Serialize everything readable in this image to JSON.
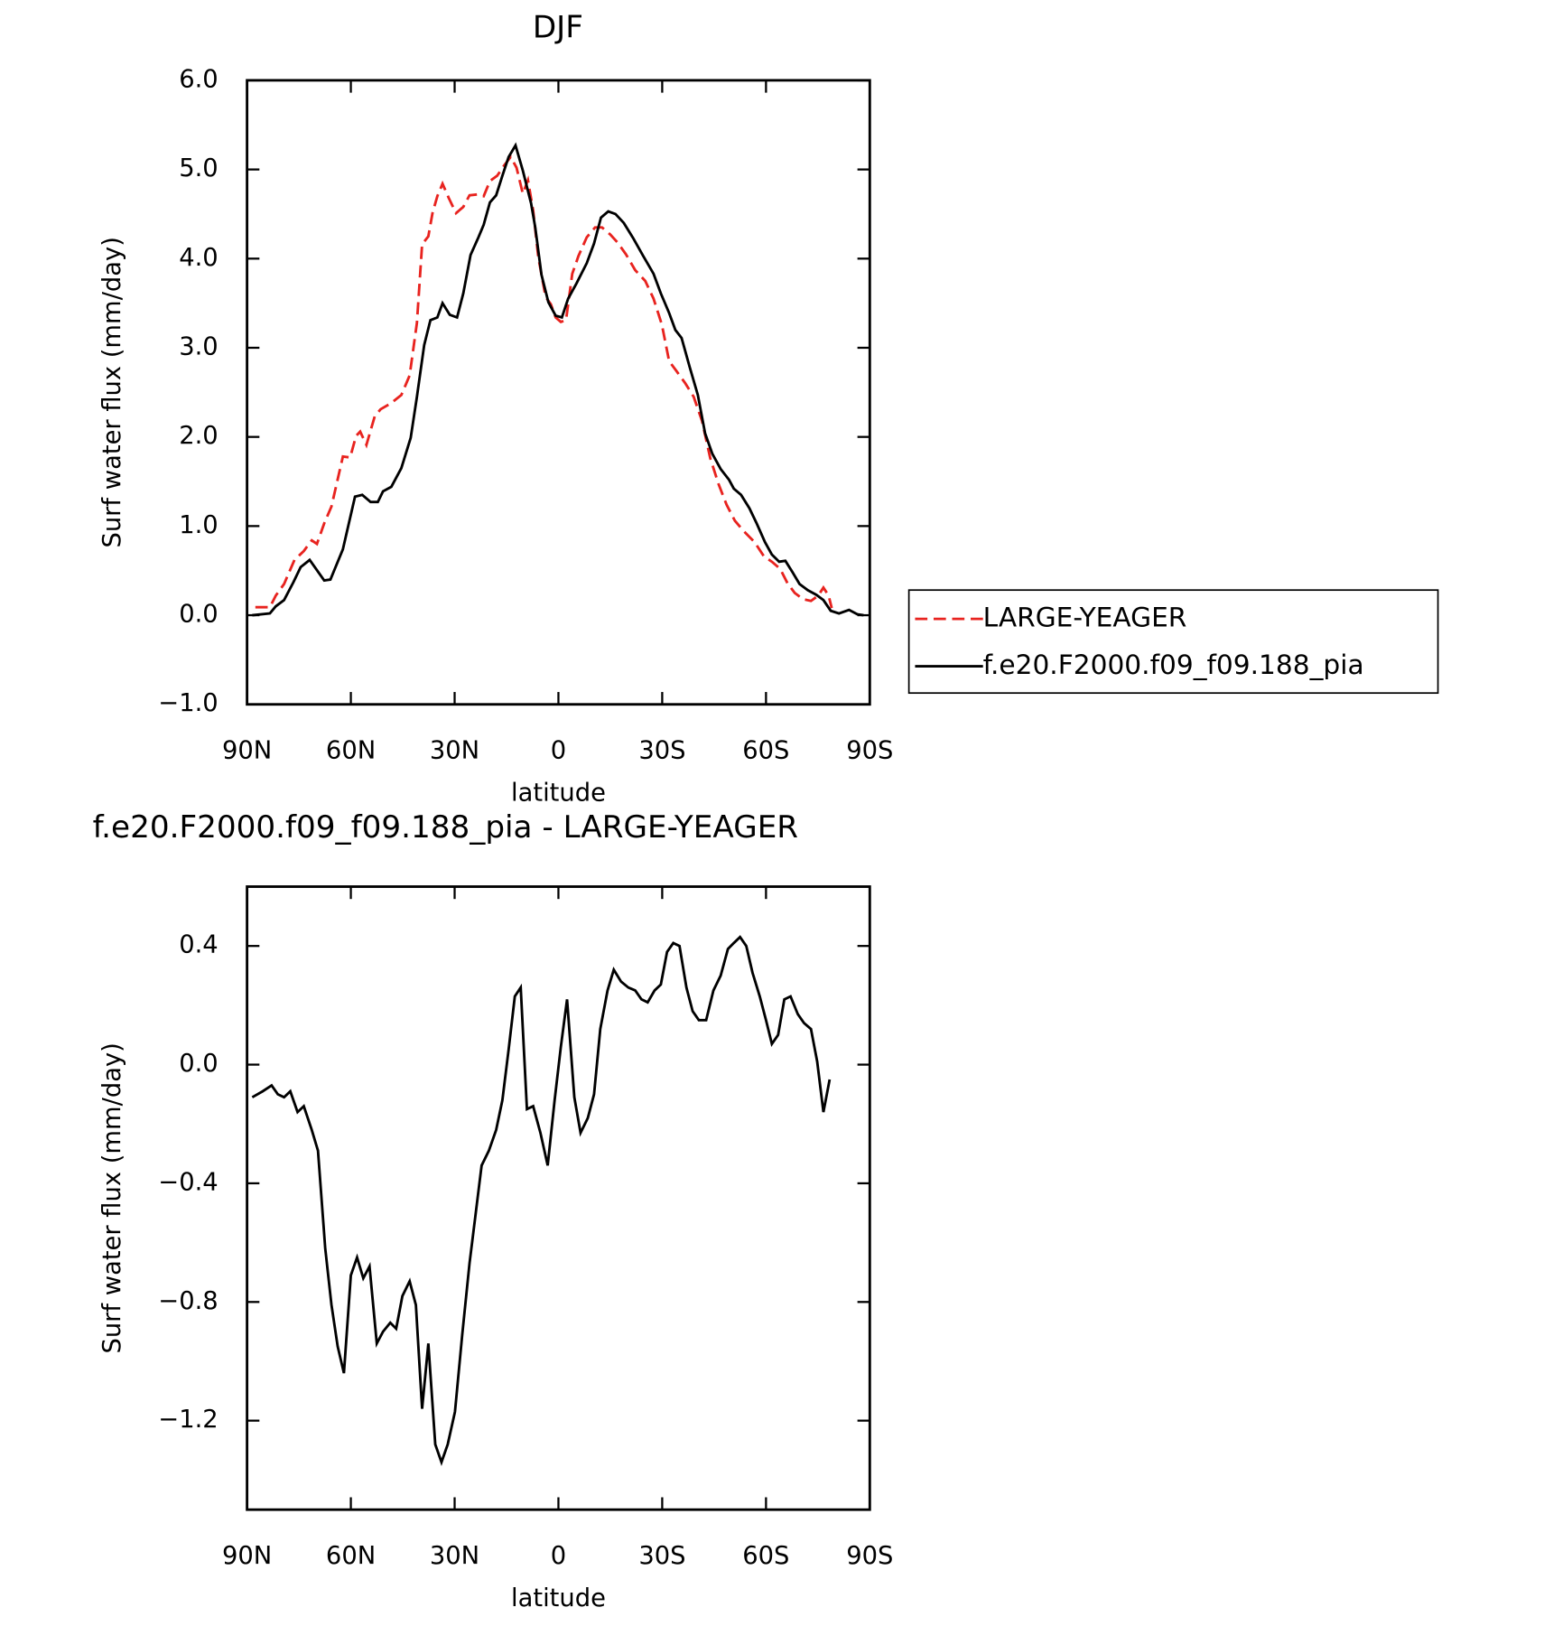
{
  "chart_data": [
    {
      "type": "line",
      "title": "DJF",
      "xlabel": "latitude",
      "ylabel": "Surf water flux (mm/day)",
      "xlim": [
        90,
        -90
      ],
      "xticks": [
        {
          "value": 90,
          "label": "90N"
        },
        {
          "value": 60,
          "label": "60N"
        },
        {
          "value": 30,
          "label": "30N"
        },
        0,
        {
          "value": -30,
          "label": "30S"
        },
        {
          "value": -60,
          "label": "60S"
        },
        {
          "value": -90,
          "label": "90S"
        }
      ],
      "ylim": [
        -1,
        6
      ],
      "yticks": [
        {
          "value": -1,
          "label": "−1.0"
        },
        {
          "value": 0,
          "label": "0.0"
        },
        {
          "value": 1,
          "label": "1.0"
        },
        {
          "value": 2,
          "label": "2.0"
        },
        {
          "value": 3,
          "label": "3.0"
        },
        {
          "value": 4,
          "label": "4.0"
        },
        {
          "value": 5,
          "label": "5.0"
        },
        {
          "value": 6,
          "label": "6.0"
        }
      ],
      "legend": "right",
      "series": [
        {
          "name": "LARGE-YEAGER",
          "color": "#e8231f",
          "dashed": true,
          "x": [
            87.6,
            83.4,
            81.7,
            79.3,
            76.3,
            73.6,
            71.3,
            69.8,
            67.7,
            65.6,
            62.3,
            60.2,
            58.5,
            57.3,
            55.5,
            53.1,
            51.4,
            48.3,
            45.4,
            43.0,
            40.9,
            39.4,
            37.6,
            36.4,
            35.0,
            33.5,
            31.7,
            29.6,
            27.5,
            25.7,
            23.4,
            21.6,
            19.8,
            17.7,
            15.6,
            13.8,
            12.1,
            10.3,
            8.8,
            7.3,
            5.8,
            3.7,
            2.2,
            0.8,
            -0.7,
            -2.2,
            -4.0,
            -5.8,
            -8.2,
            -10.6,
            -12.6,
            -15.0,
            -17.1,
            -19.5,
            -22.2,
            -25.1,
            -27.5,
            -29.9,
            -32.0,
            -34.1,
            -36.7,
            -39.1,
            -41.5,
            -43.9,
            -46.3,
            -48.6,
            -51.0,
            -53.4,
            -56.7,
            -59.4,
            -61.7,
            -64.1,
            -66.2,
            -68.3,
            -70.7,
            -73.0,
            -75.1,
            -76.6,
            -78.1,
            -79.0
          ],
          "values": [
            0.09,
            0.09,
            0.22,
            0.35,
            0.62,
            0.72,
            0.84,
            0.8,
            1.03,
            1.22,
            1.78,
            1.77,
            2.01,
            2.06,
            1.91,
            2.23,
            2.31,
            2.38,
            2.47,
            2.69,
            3.28,
            4.16,
            4.25,
            4.51,
            4.7,
            4.84,
            4.68,
            4.51,
            4.58,
            4.71,
            4.72,
            4.7,
            4.87,
            4.93,
            5.05,
            5.14,
            5.02,
            4.73,
            4.88,
            4.54,
            4.01,
            3.57,
            3.49,
            3.34,
            3.29,
            3.31,
            3.83,
            4.03,
            4.24,
            4.35,
            4.35,
            4.27,
            4.18,
            4.05,
            3.87,
            3.75,
            3.55,
            3.26,
            2.85,
            2.74,
            2.6,
            2.45,
            2.18,
            1.76,
            1.47,
            1.24,
            1.06,
            0.95,
            0.82,
            0.66,
            0.6,
            0.52,
            0.36,
            0.25,
            0.18,
            0.16,
            0.22,
            0.31,
            0.22,
            0.08
          ]
        },
        {
          "name": "f.e20.F2000.f09_f09.188_pia",
          "color": "#000000",
          "dashed": false,
          "x": [
            88.5,
            83.4,
            81.7,
            79.3,
            76.6,
            74.5,
            71.9,
            67.7,
            65.9,
            62.3,
            58.8,
            56.7,
            54.3,
            52.2,
            50.7,
            48.3,
            45.4,
            42.7,
            40.9,
            38.8,
            37.0,
            35.0,
            33.5,
            31.4,
            29.3,
            27.5,
            25.4,
            23.1,
            21.6,
            19.8,
            18.0,
            16.2,
            14.4,
            12.4,
            10.3,
            7.9,
            6.7,
            4.9,
            2.9,
            0.8,
            -1.0,
            -2.8,
            -5.2,
            -8.2,
            -10.3,
            -12.3,
            -14.4,
            -16.5,
            -18.9,
            -21.6,
            -24.5,
            -27.5,
            -29.6,
            -32.0,
            -33.8,
            -35.6,
            -37.9,
            -40.3,
            -42.4,
            -44.5,
            -46.9,
            -49.3,
            -50.7,
            -52.8,
            -55.2,
            -57.3,
            -59.7,
            -61.7,
            -63.8,
            -65.6,
            -67.7,
            -69.7,
            -72.1,
            -74.5,
            -76.6,
            -78.7,
            -81.1,
            -84.0,
            -86.4,
            -88.2
          ],
          "values": [
            0,
            0.02,
            0.1,
            0.17,
            0.37,
            0.54,
            0.62,
            0.39,
            0.4,
            0.74,
            1.33,
            1.35,
            1.27,
            1.27,
            1.39,
            1.44,
            1.65,
            1.99,
            2.45,
            3.03,
            3.31,
            3.34,
            3.5,
            3.37,
            3.34,
            3.61,
            4.04,
            4.24,
            4.38,
            4.63,
            4.71,
            4.93,
            5.14,
            5.27,
            4.99,
            4.62,
            4.35,
            3.82,
            3.51,
            3.36,
            3.34,
            3.55,
            3.72,
            3.95,
            4.17,
            4.46,
            4.53,
            4.5,
            4.4,
            4.23,
            4.03,
            3.83,
            3.61,
            3.39,
            3.2,
            3.11,
            2.79,
            2.47,
            2.04,
            1.81,
            1.64,
            1.52,
            1.42,
            1.35,
            1.2,
            1.03,
            0.82,
            0.68,
            0.6,
            0.61,
            0.48,
            0.35,
            0.28,
            0.23,
            0.17,
            0.05,
            0.02,
            0.06,
            0.01,
            0
          ]
        }
      ]
    },
    {
      "type": "line",
      "title": "f.e20.F2000.f09_f09.188_pia - LARGE-YEAGER",
      "xlabel": "latitude",
      "ylabel": "Surf water flux (mm/day)",
      "xlim": [
        90,
        -90
      ],
      "xticks": [
        {
          "value": 90,
          "label": "90N"
        },
        {
          "value": 60,
          "label": "60N"
        },
        {
          "value": 30,
          "label": "30N"
        },
        0,
        {
          "value": -30,
          "label": "30S"
        },
        {
          "value": -60,
          "label": "60S"
        },
        {
          "value": -90,
          "label": "90S"
        }
      ],
      "ylim": [
        -1.5,
        0.6
      ],
      "yticks": [
        {
          "value": -1.2,
          "label": "−1.2"
        },
        {
          "value": -0.8,
          "label": "−0.8"
        },
        {
          "value": -0.4,
          "label": "−0.4"
        },
        {
          "value": 0,
          "label": "0.0"
        },
        0.4
      ],
      "series": [
        {
          "color": "#000000",
          "dashed": false,
          "x": [
            88.5,
            85.5,
            82.9,
            81.1,
            79.3,
            77.5,
            75.4,
            73.6,
            71.3,
            69.5,
            67.4,
            65.6,
            63.8,
            62.0,
            60.0,
            58.2,
            56.4,
            54.6,
            52.5,
            50.7,
            48.6,
            46.9,
            45.1,
            43.0,
            41.2,
            39.4,
            37.6,
            35.6,
            33.8,
            32.0,
            29.9,
            27.8,
            25.7,
            24.0,
            22.2,
            20.1,
            18.0,
            16.2,
            14.4,
            12.6,
            10.9,
            9.1,
            7.3,
            5.2,
            3.1,
            1.1,
            -0.7,
            -2.5,
            -4.6,
            -6.4,
            -8.5,
            -10.3,
            -12.1,
            -14.2,
            -16.0,
            -18.1,
            -20.2,
            -22.2,
            -24.0,
            -25.8,
            -27.8,
            -29.6,
            -31.4,
            -33.2,
            -35.0,
            -37.0,
            -38.8,
            -40.6,
            -42.7,
            -44.8,
            -46.9,
            -49.0,
            -50.7,
            -52.5,
            -54.3,
            -56.1,
            -58.2,
            -60.0,
            -61.7,
            -63.5,
            -65.3,
            -67.1,
            -69.2,
            -71.0,
            -73.0,
            -74.8,
            -76.6,
            -78.4
          ],
          "values": [
            -0.11,
            -0.09,
            -0.07,
            -0.1,
            -0.11,
            -0.09,
            -0.16,
            -0.14,
            -0.22,
            -0.29,
            -0.62,
            -0.81,
            -0.95,
            -1.04,
            -0.71,
            -0.65,
            -0.72,
            -0.68,
            -0.94,
            -0.9,
            -0.87,
            -0.89,
            -0.78,
            -0.73,
            -0.81,
            -1.16,
            -0.94,
            -1.28,
            -1.34,
            -1.28,
            -1.17,
            -0.91,
            -0.67,
            -0.51,
            -0.34,
            -0.29,
            -0.22,
            -0.12,
            0.05,
            0.23,
            0.26,
            -0.15,
            -0.14,
            -0.23,
            -0.34,
            -0.12,
            0.06,
            0.22,
            -0.11,
            -0.23,
            -0.18,
            -0.1,
            0.12,
            0.25,
            0.32,
            0.28,
            0.26,
            0.25,
            0.22,
            0.21,
            0.25,
            0.27,
            0.38,
            0.41,
            0.4,
            0.26,
            0.18,
            0.15,
            0.15,
            0.25,
            0.3,
            0.39,
            0.41,
            0.43,
            0.4,
            0.31,
            0.23,
            0.15,
            0.07,
            0.1,
            0.22,
            0.23,
            0.17,
            0.14,
            0.12,
            0.01,
            -0.16,
            -0.05
          ]
        }
      ]
    }
  ]
}
